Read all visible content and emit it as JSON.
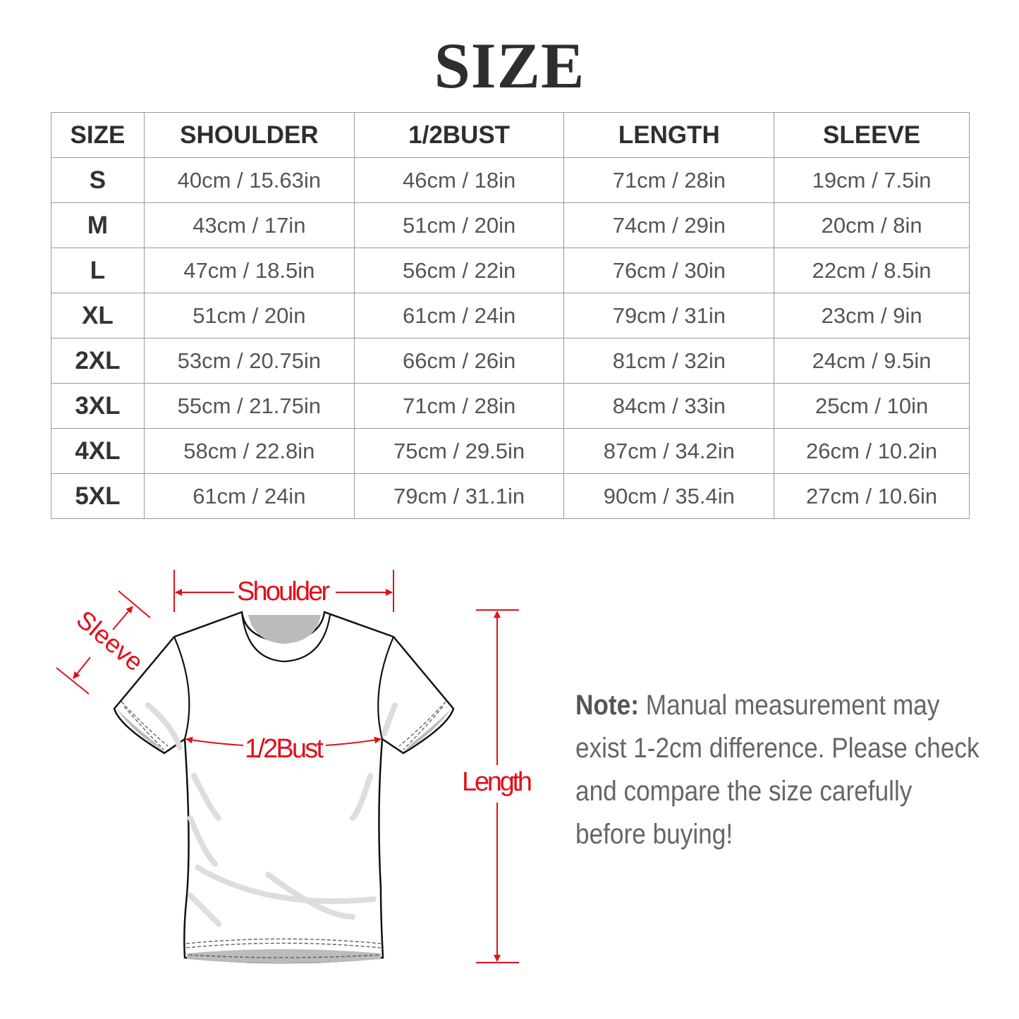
{
  "title": "SIZE",
  "table": {
    "headers": [
      "SIZE",
      "SHOULDER",
      "1/2BUST",
      "LENGTH",
      "SLEEVE"
    ],
    "rows": [
      [
        "S",
        "40cm / 15.63in",
        "46cm / 18in",
        "71cm / 28in",
        "19cm / 7.5in"
      ],
      [
        "M",
        "43cm / 17in",
        "51cm / 20in",
        "74cm / 29in",
        "20cm / 8in"
      ],
      [
        "L",
        "47cm / 18.5in",
        "56cm / 22in",
        "76cm / 30in",
        "22cm / 8.5in"
      ],
      [
        "XL",
        "51cm / 20in",
        "61cm / 24in",
        "79cm / 31in",
        "23cm / 9in"
      ],
      [
        "2XL",
        "53cm / 20.75in",
        "66cm / 26in",
        "81cm / 32in",
        "24cm / 9.5in"
      ],
      [
        "3XL",
        "55cm / 21.75in",
        "71cm / 28in",
        "84cm / 33in",
        "25cm / 10in"
      ],
      [
        "4XL",
        "58cm / 22.8in",
        "75cm / 29.5in",
        "87cm / 34.2in",
        "26cm / 10.2in"
      ],
      [
        "5XL",
        "61cm / 24in",
        "79cm / 31.1in",
        "90cm / 35.4in",
        "27cm / 10.6in"
      ]
    ]
  },
  "diagram": {
    "shoulder_label": "Shoulder",
    "sleeve_label": "Sleeve",
    "bust_label": "1/2Bust",
    "length_label": "Length",
    "accent_color": "#e0101a"
  },
  "note": {
    "label": "Note:",
    "text": "Manual measurement may exist 1-2cm difference. Please check and compare the size carefully before buying!"
  }
}
